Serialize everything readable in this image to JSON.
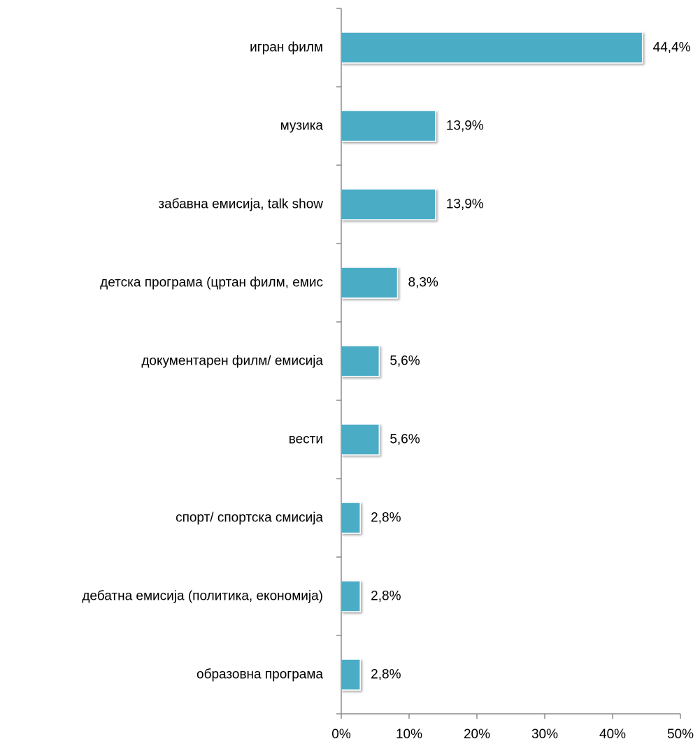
{
  "chart_data": {
    "type": "bar",
    "orientation": "horizontal",
    "categories": [
      "игран филм",
      "музика",
      "забавна емисија, talk show",
      "детска програма (цртан филм, емис",
      "документарен филм/ емисија",
      "вести",
      "спорт/ спортска смисија",
      "дебатна емисија (политика, економија)",
      "образовна програма"
    ],
    "values": [
      44.4,
      13.9,
      13.9,
      8.3,
      5.6,
      5.6,
      2.8,
      2.8,
      2.8
    ],
    "data_labels": [
      "44,4%",
      "13,9%",
      "13,9%",
      "8,3%",
      "5,6%",
      "5,6%",
      "2,8%",
      "2,8%",
      "2,8%"
    ],
    "xlim": [
      0,
      50
    ],
    "x_ticks": [
      0,
      10,
      20,
      30,
      40,
      50
    ],
    "x_tick_labels": [
      "0%",
      "10%",
      "20%",
      "30%",
      "40%",
      "50%"
    ],
    "title": "",
    "xlabel": "",
    "ylabel": "",
    "grid": false,
    "legend": "none",
    "colors": {
      "bar": "#4BACC6",
      "bar_edge": "#ffffff",
      "axis": "#8c8c8c"
    }
  }
}
